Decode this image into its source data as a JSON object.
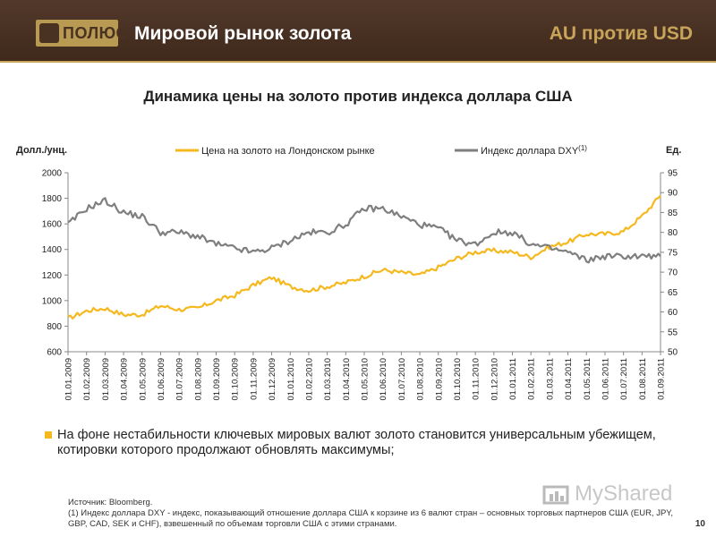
{
  "header": {
    "logo_text": "ПОЛЮС",
    "title": "Мировой рынок золота",
    "right_title": "AU против USD"
  },
  "chart_title": "Динамика цены на золото против индекса доллара США",
  "colors": {
    "gold": "#f5b81e",
    "dxy": "#7f7f7f",
    "header_bg": "#4a3222",
    "accent": "#c8a45a"
  },
  "chart_data": {
    "type": "line",
    "left_axis_label": "Долл./унц.",
    "right_axis_label": "Ед.",
    "left_ylim": [
      600,
      2000
    ],
    "left_ticks": [
      600,
      800,
      1000,
      1200,
      1400,
      1600,
      1800,
      2000
    ],
    "right_ylim": [
      50,
      95
    ],
    "right_ticks": [
      50,
      55,
      60,
      65,
      70,
      75,
      80,
      85,
      90,
      95
    ],
    "x_labels": [
      "01.01.2009",
      "01.02.2009",
      "01.03.2009",
      "01.04.2009",
      "01.05.2009",
      "01.06.2009",
      "01.07.2009",
      "01.08.2009",
      "01.09.2009",
      "01.10.2009",
      "01.11.2009",
      "01.12.2009",
      "01.01.2010",
      "01.02.2010",
      "01.03.2010",
      "01.04.2010",
      "01.05.2010",
      "01.06.2010",
      "01.07.2010",
      "01.08.2010",
      "01.09.2010",
      "01.10.2010",
      "01.11.2010",
      "01.12.2010",
      "01.01.2011",
      "01.02.2011",
      "01.03.2011",
      "01.04.2011",
      "01.05.2011",
      "01.06.2011",
      "01.07.2011",
      "01.08.2011",
      "01.09.2011"
    ],
    "series": [
      {
        "name": "Цена на золото на Лондонском рынке",
        "axis": "left",
        "color": "#f5b81e",
        "values": [
          860,
          920,
          940,
          890,
          890,
          960,
          930,
          940,
          1000,
          1040,
          1120,
          1180,
          1110,
          1080,
          1110,
          1140,
          1190,
          1240,
          1220,
          1200,
          1260,
          1330,
          1380,
          1390,
          1380,
          1340,
          1420,
          1460,
          1520,
          1520,
          1540,
          1660,
          1820
        ]
      },
      {
        "name": "Индекс доллара DXY",
        "name_superscript": "(1)",
        "axis": "right",
        "color": "#7f7f7f",
        "values": [
          82,
          86,
          88,
          85,
          84,
          80,
          80,
          79,
          77,
          76,
          75,
          76,
          78,
          80,
          80,
          82,
          86,
          86,
          84,
          82,
          81,
          78,
          77,
          80,
          80,
          77,
          76,
          75,
          73,
          74,
          74,
          74,
          74
        ]
      }
    ]
  },
  "bullet_text": "На фоне нестабильности ключевых мировых валют золото становится универсальным убежищем, котировки которого продолжают обновлять максимумы;",
  "footnote": {
    "line1": "Источник: Bloomberg.",
    "line2": "(1) Индекс доллара DXY - индекс, показывающий отношение доллара США к корзине из 6 валют стран – основных торговых партнеров США (EUR, JPY, GBP, CAD, SEK и CHF), взвешенный по объемам торговли США с этими странами."
  },
  "watermark": "MyShared",
  "page_number": "10"
}
